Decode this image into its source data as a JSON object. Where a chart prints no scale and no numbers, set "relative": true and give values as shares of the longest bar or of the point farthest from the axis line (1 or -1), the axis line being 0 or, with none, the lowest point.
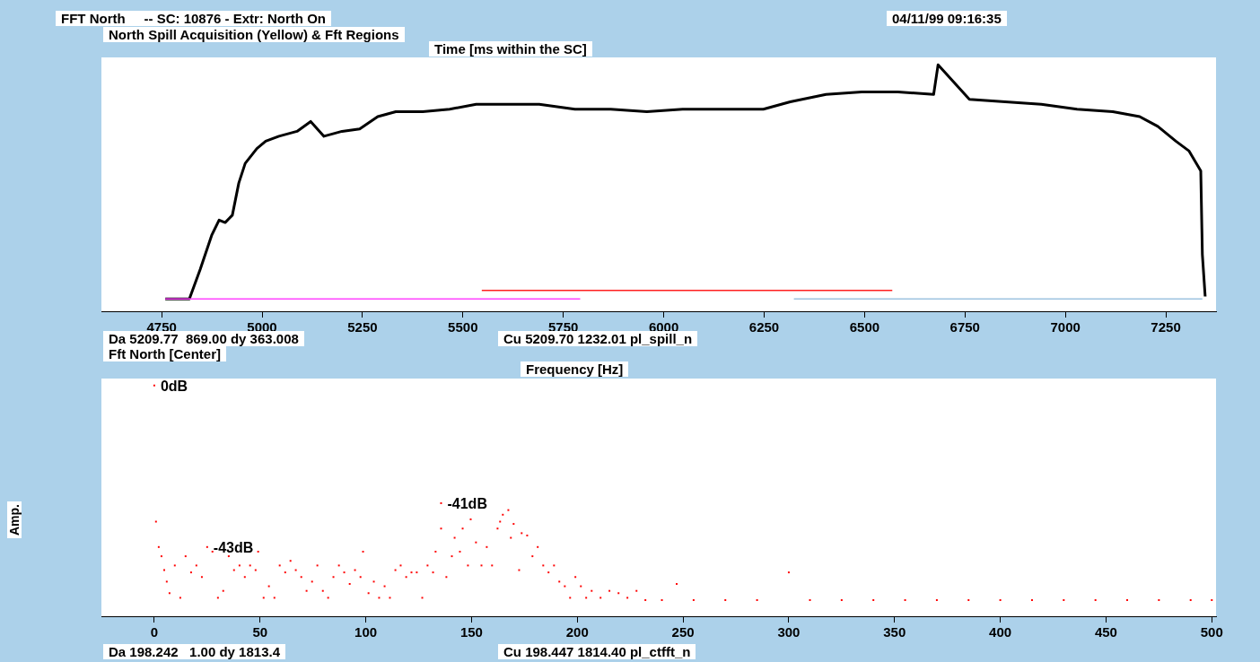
{
  "chart_data": [
    {
      "type": "line",
      "title": "FFT North     -- SC: 10876 - Extr: North On",
      "subtitle": "North Spill Acquisition (Yellow) & Fft Regions",
      "xlabel": "Time [ms within the SC]",
      "relative": true,
      "marker": "none",
      "legend": false,
      "grid": false,
      "annotations": [
        "04/11/99 09:16:35",
        "Da 5209.77  869.00 dy 363.008",
        "Cu 5209.70 1232.01 pl_spill_n"
      ],
      "xlim": [
        4600,
        7375
      ],
      "xticks": [
        4750,
        5000,
        5250,
        5500,
        5750,
        6000,
        6250,
        6500,
        6750,
        7000,
        7250
      ],
      "series": [
        {
          "color": "#ff44ff",
          "x": [
            4759,
            5792
          ],
          "values": [
            0.05,
            0.05
          ]
        },
        {
          "color": "#ff2020",
          "x": [
            5547,
            6569
          ],
          "values": [
            0.085,
            0.085
          ]
        },
        {
          "color": "#9ec4e0",
          "x": [
            6324,
            7341
          ],
          "values": [
            0.05,
            0.05
          ]
        },
        {
          "color": "#000000",
          "x": [
            4759,
            4819,
            4846,
            4875,
            4893,
            4908,
            4926,
            4942,
            4958,
            4987,
            5009,
            5042,
            5087,
            5121,
            5154,
            5199,
            5243,
            5288,
            5333,
            5400,
            5467,
            5533,
            5600,
            5690,
            5779,
            5868,
            5958,
            6047,
            6136,
            6248,
            6315,
            6404,
            6493,
            6583,
            6672,
            6683,
            6761,
            6850,
            6940,
            7029,
            7118,
            7185,
            7230,
            7275,
            7308,
            7337,
            7341,
            7348
          ],
          "values": [
            0.05,
            0.05,
            0.17,
            0.31,
            0.37,
            0.36,
            0.39,
            0.52,
            0.6,
            0.66,
            0.69,
            0.71,
            0.73,
            0.77,
            0.71,
            0.73,
            0.74,
            0.79,
            0.81,
            0.81,
            0.82,
            0.84,
            0.84,
            0.84,
            0.82,
            0.82,
            0.81,
            0.82,
            0.82,
            0.82,
            0.85,
            0.88,
            0.89,
            0.89,
            0.88,
            1.0,
            0.86,
            0.85,
            0.84,
            0.82,
            0.81,
            0.79,
            0.75,
            0.69,
            0.65,
            0.57,
            0.23,
            0.06
          ]
        }
      ]
    },
    {
      "type": "scatter",
      "title": "Fft North [Center]",
      "xlabel": "Frequency [Hz]",
      "ylabel": "Amp.",
      "relative": true,
      "marker": "square",
      "legend": false,
      "grid": false,
      "annotations": [
        "Da 198.242   1.00 dy 1813.4",
        "Cu 198.447 1814.40 pl_ctfft_n",
        {
          "text": "0dB",
          "x": 0,
          "y": 1.0
        },
        {
          "text": "-43dB",
          "x": 25.0,
          "y": 0.3
        },
        {
          "text": "-41dB",
          "x": 135.6,
          "y": 0.49
        }
      ],
      "xlim": [
        -25,
        502
      ],
      "xticks": [
        0,
        50,
        100,
        150,
        200,
        250,
        300,
        350,
        400,
        450,
        500
      ],
      "series": [
        {
          "color": "#ff0000",
          "x": [
            0,
            0.8,
            2.1,
            3.4,
            4.7,
            5.9,
            7.2,
            9.7,
            12.3,
            14.8,
            17.4,
            19.9,
            22.5,
            25.0,
            27.5,
            30.1,
            32.6,
            35.2,
            37.7,
            40.3,
            42.8,
            45.3,
            47.9,
            49.1,
            51.7,
            54.2,
            56.8,
            59.3,
            61.9,
            64.4,
            66.9,
            69.5,
            72.0,
            74.6,
            77.1,
            79.7,
            82.2,
            84.7,
            87.3,
            89.8,
            92.4,
            94.9,
            97.5,
            98.7,
            101.3,
            103.8,
            106.3,
            108.9,
            111.4,
            114.0,
            116.5,
            119.1,
            121.6,
            124.1,
            126.7,
            129.2,
            131.8,
            133.0,
            135.6,
            135.6,
            138.1,
            140.7,
            142.0,
            144.5,
            145.8,
            148.3,
            149.6,
            152.1,
            154.7,
            157.2,
            159.7,
            162.3,
            163.5,
            164.8,
            167.4,
            168.6,
            169.9,
            172.5,
            173.7,
            176.3,
            178.8,
            181.3,
            183.9,
            186.4,
            189.0,
            191.5,
            194.1,
            196.6,
            199.1,
            201.7,
            204.2,
            206.8,
            211.0,
            215.2,
            219.5,
            223.7,
            228.0,
            232.2,
            240,
            247.0,
            255,
            270,
            285,
            300.0,
            310,
            325,
            340,
            355,
            370,
            385,
            400,
            415,
            430,
            445,
            460,
            475,
            490,
            500
          ],
          "values": [
            1.0,
            0.41,
            0.3,
            0.26,
            0.2,
            0.15,
            0.1,
            0.22,
            0.08,
            0.26,
            0.19,
            0.22,
            0.17,
            0.3,
            0.28,
            0.08,
            0.11,
            0.26,
            0.2,
            0.22,
            0.17,
            0.22,
            0.2,
            0.28,
            0.08,
            0.13,
            0.08,
            0.22,
            0.19,
            0.24,
            0.2,
            0.17,
            0.11,
            0.15,
            0.22,
            0.11,
            0.08,
            0.17,
            0.22,
            0.19,
            0.14,
            0.2,
            0.17,
            0.28,
            0.1,
            0.15,
            0.08,
            0.13,
            0.08,
            0.2,
            0.22,
            0.17,
            0.19,
            0.19,
            0.08,
            0.22,
            0.19,
            0.28,
            0.38,
            0.49,
            0.17,
            0.26,
            0.34,
            0.28,
            0.38,
            0.22,
            0.42,
            0.32,
            0.22,
            0.3,
            0.22,
            0.38,
            0.41,
            0.44,
            0.46,
            0.34,
            0.4,
            0.2,
            0.36,
            0.35,
            0.26,
            0.3,
            0.22,
            0.19,
            0.22,
            0.15,
            0.13,
            0.08,
            0.17,
            0.13,
            0.08,
            0.11,
            0.08,
            0.11,
            0.1,
            0.08,
            0.11,
            0.07,
            0.07,
            0.14,
            0.07,
            0.07,
            0.07,
            0.19,
            0.07,
            0.07,
            0.07,
            0.07,
            0.07,
            0.07,
            0.07,
            0.07,
            0.07,
            0.07,
            0.07,
            0.07,
            0.07,
            0.07
          ]
        }
      ]
    }
  ]
}
